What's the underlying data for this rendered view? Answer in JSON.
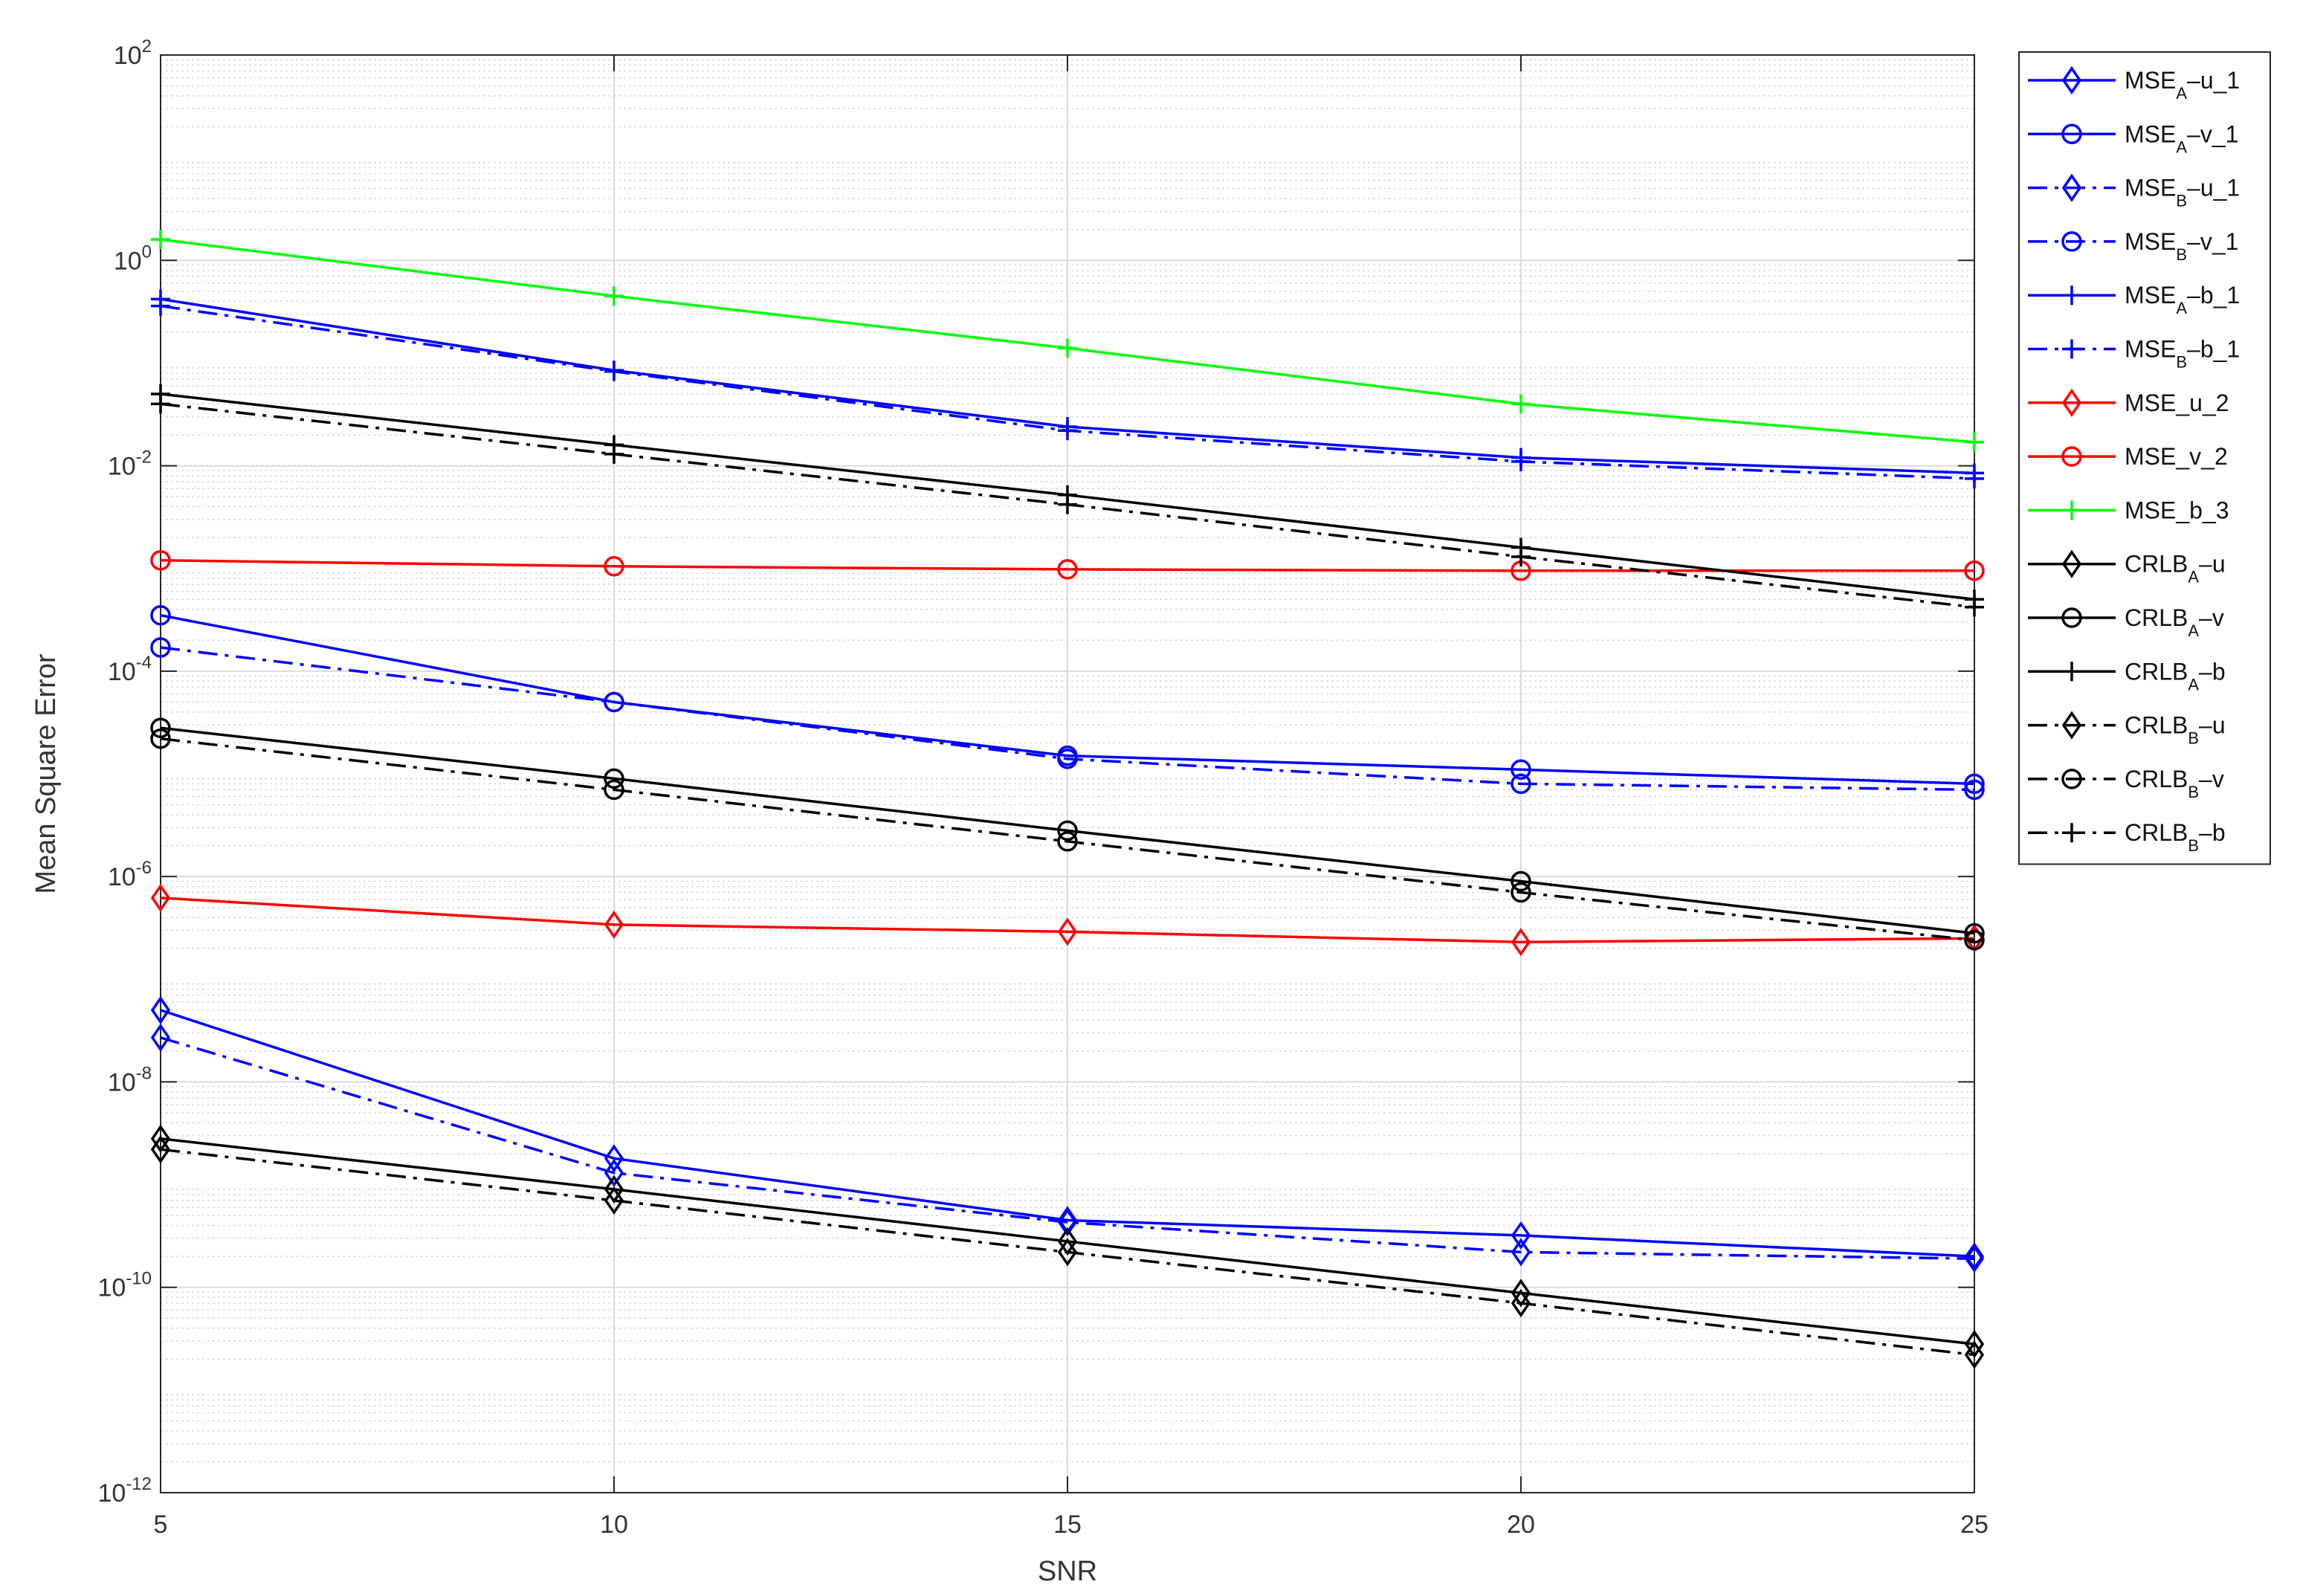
{
  "chart_data": {
    "type": "line",
    "title": "",
    "xlabel": "SNR",
    "ylabel": "Mean Square Error",
    "xlim": [
      5,
      25
    ],
    "ylim": [
      1e-12,
      100
    ],
    "y_scale": "log",
    "grid": true,
    "minor_grid": true,
    "legend_placement": "outside-right-top",
    "x": [
      5,
      10,
      15,
      20,
      25
    ],
    "x_ticks": [
      5,
      10,
      15,
      20,
      25
    ],
    "x_tick_labels": [
      "5",
      "10",
      "15",
      "20",
      "25"
    ],
    "y_ticks": [
      {
        "value": 1e-12,
        "base": "10",
        "exp": "-12"
      },
      {
        "value": 1e-10,
        "base": "10",
        "exp": "-10"
      },
      {
        "value": 1e-08,
        "base": "10",
        "exp": "-8"
      },
      {
        "value": 1e-06,
        "base": "10",
        "exp": "-6"
      },
      {
        "value": 0.0001,
        "base": "10",
        "exp": "-4"
      },
      {
        "value": 0.01,
        "base": "10",
        "exp": "-2"
      },
      {
        "value": 1,
        "base": "10",
        "exp": "0"
      },
      {
        "value": 100,
        "base": "10",
        "exp": "2"
      }
    ],
    "series": [
      {
        "label_main": "MSE",
        "label_sub": "A",
        "label_rest": "u_1",
        "color": "#0000ff",
        "dash": "solid",
        "marker": "diamond",
        "values": [
          5e-08,
          1.8e-09,
          4.5e-10,
          3.2e-10,
          2e-10
        ]
      },
      {
        "label_main": "MSE",
        "label_sub": "A",
        "label_rest": "v_1",
        "color": "#0000ff",
        "dash": "solid",
        "marker": "circle",
        "values": [
          0.00035,
          5e-05,
          1.5e-05,
          1.1e-05,
          8e-06
        ]
      },
      {
        "label_main": "MSE",
        "label_sub": "B",
        "label_rest": "u_1",
        "color": "#0000ff",
        "dash": "dashdot",
        "marker": "diamond",
        "values": [
          2.7e-08,
          1.3e-09,
          4.3e-10,
          2.2e-10,
          1.9e-10
        ]
      },
      {
        "label_main": "MSE",
        "label_sub": "B",
        "label_rest": "v_1",
        "color": "#0000ff",
        "dash": "dashdot",
        "marker": "circle",
        "values": [
          0.00017,
          5e-05,
          1.4e-05,
          8e-06,
          7e-06
        ]
      },
      {
        "label_main": "MSE",
        "label_sub": "A",
        "label_rest": "b_1",
        "color": "#0000ff",
        "dash": "solid",
        "marker": "plus",
        "values": [
          0.42,
          0.085,
          0.024,
          0.012,
          0.0085
        ]
      },
      {
        "label_main": "MSE",
        "label_sub": "B",
        "label_rest": "b_1",
        "color": "#0000ff",
        "dash": "dashdot",
        "marker": "plus",
        "values": [
          0.36,
          0.083,
          0.022,
          0.011,
          0.0075
        ]
      },
      {
        "label_main": "MSE_u_2",
        "label_sub": "",
        "label_rest": "",
        "color": "#ff0000",
        "dash": "solid",
        "marker": "diamond",
        "values": [
          6.2e-07,
          3.4e-07,
          2.9e-07,
          2.3e-07,
          2.5e-07
        ]
      },
      {
        "label_main": "MSE_v_2",
        "label_sub": "",
        "label_rest": "",
        "color": "#ff0000",
        "dash": "solid",
        "marker": "circle",
        "values": [
          0.0012,
          0.00105,
          0.00098,
          0.00095,
          0.00095
        ]
      },
      {
        "label_main": "MSE_b_3",
        "label_sub": "",
        "label_rest": "",
        "color": "#00ff00",
        "dash": "solid",
        "marker": "plus",
        "values": [
          1.6,
          0.45,
          0.14,
          0.04,
          0.017
        ]
      },
      {
        "label_main": "CRLB",
        "label_sub": "A",
        "label_rest": "u",
        "color": "#000000",
        "dash": "solid",
        "marker": "diamond",
        "values": [
          2.8e-09,
          9e-10,
          2.8e-10,
          8.8e-11,
          2.8e-11
        ]
      },
      {
        "label_main": "CRLB",
        "label_sub": "A",
        "label_rest": "v",
        "color": "#000000",
        "dash": "solid",
        "marker": "circle",
        "values": [
          2.8e-05,
          9e-06,
          2.8e-06,
          9e-07,
          2.8e-07
        ]
      },
      {
        "label_main": "CRLB",
        "label_sub": "A",
        "label_rest": "b",
        "color": "#000000",
        "dash": "solid",
        "marker": "plus",
        "values": [
          0.05,
          0.016,
          0.0052,
          0.0016,
          0.0005
        ]
      },
      {
        "label_main": "CRLB",
        "label_sub": "B",
        "label_rest": "u",
        "color": "#000000",
        "dash": "dashdot",
        "marker": "diamond",
        "values": [
          2.2e-09,
          7e-10,
          2.2e-10,
          7e-11,
          2.2e-11
        ]
      },
      {
        "label_main": "CRLB",
        "label_sub": "B",
        "label_rest": "v",
        "color": "#000000",
        "dash": "dashdot",
        "marker": "circle",
        "values": [
          2.2e-05,
          7e-06,
          2.2e-06,
          7e-07,
          2.4e-07
        ]
      },
      {
        "label_main": "CRLB",
        "label_sub": "B",
        "label_rest": "b",
        "color": "#000000",
        "dash": "dashdot",
        "marker": "plus",
        "values": [
          0.04,
          0.013,
          0.0042,
          0.0013,
          0.00042
        ]
      }
    ]
  }
}
